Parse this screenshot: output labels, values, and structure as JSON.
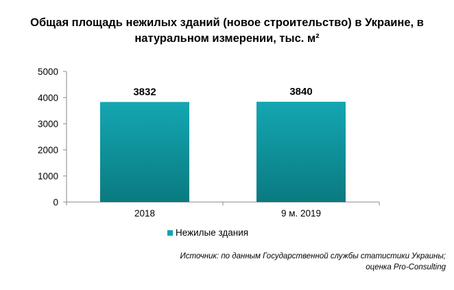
{
  "chart_data": {
    "type": "bar",
    "title_lines": [
      "Общая площадь нежилых зданий (новое строительство) в Украине, в",
      "натуральном измерении, тыс. м²"
    ],
    "categories": [
      "2018",
      "9 м. 2019"
    ],
    "series": [
      {
        "name": "Нежилые здания",
        "values": [
          3832,
          3840
        ],
        "color": "#0ea3ad"
      }
    ],
    "data_labels": [
      "3832",
      "3840"
    ],
    "ylim": [
      0,
      5000
    ],
    "yticks": [
      0,
      1000,
      2000,
      3000,
      4000,
      5000
    ],
    "ytick_labels": [
      "0",
      "1000",
      "2000",
      "3000",
      "4000",
      "5000"
    ],
    "grid": false,
    "legend_position": "bottom"
  },
  "source": {
    "line1": "Источник: по данным Государственной службы статистики Украины;",
    "line2": "оценка Pro-Consulting"
  },
  "colors": {
    "bar_top": "#14a7b2",
    "bar_bottom": "#0a7a80",
    "axis": "#888888"
  }
}
